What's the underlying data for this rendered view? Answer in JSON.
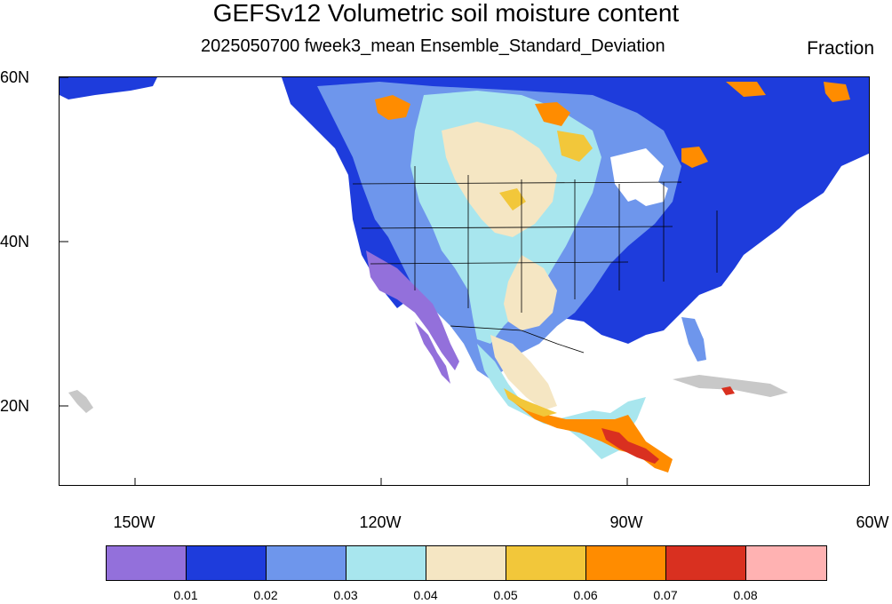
{
  "title": "GEFSv12 Volumetric soil moisture content",
  "subtitle": "2025050700 fweek3_mean Ensemble_Standard_Deviation",
  "units": "Fraction",
  "lat_labels": [
    "60N",
    "40N",
    "20N"
  ],
  "lon_labels": [
    "150W",
    "120W",
    "90W",
    "60W"
  ],
  "colorbar": {
    "colors": [
      "#9370db",
      "#1e3cdc",
      "#6e96ec",
      "#a8e6ee",
      "#f5e6c3",
      "#f2c73a",
      "#ff8c00",
      "#d93020",
      "#ffb2b2"
    ],
    "labels": [
      "0.01",
      "0.02",
      "0.03",
      "0.04",
      "0.05",
      "0.06",
      "0.07",
      "0.08"
    ]
  },
  "palette": {
    "purple": "#9370db",
    "dark_blue": "#1e3cdc",
    "mid_blue": "#6e96ec",
    "light_cyan": "#a8e6ee",
    "tan": "#f5e6c3",
    "yellow": "#f2c73a",
    "orange": "#ff8c00",
    "red": "#d93020",
    "pink": "#ffb2b2",
    "missing_gray": "#c8c8c8"
  }
}
